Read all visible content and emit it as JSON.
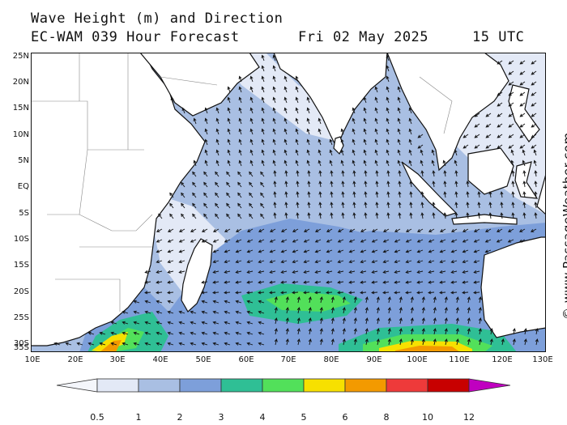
{
  "header": {
    "line1": "Wave Height (m) and Direction",
    "model": "EC-WAM 039 Hour Forecast",
    "date": "Fri 02 May 2025",
    "time": "15 UTC"
  },
  "credit": "© www.PassageWeather.com",
  "lat_labels": [
    "25N",
    "20N",
    "15N",
    "10N",
    "5N",
    "EQ",
    "5S",
    "10S",
    "15S",
    "20S",
    "25S",
    "30S",
    "35S"
  ],
  "lon_labels": [
    "10E",
    "20E",
    "30E",
    "40E",
    "50E",
    "60E",
    "70E",
    "80E",
    "90E",
    "100E",
    "110E",
    "120E",
    "130E"
  ],
  "colorbar": {
    "ticks": [
      "0.5",
      "1",
      "2",
      "3",
      "4",
      "5",
      "6",
      "8",
      "10",
      "12"
    ],
    "colors": [
      "#f4f6fb",
      "#e3e9f6",
      "#a9bfe3",
      "#7d9fda",
      "#2fbf95",
      "#52e05a",
      "#f7e000",
      "#f39a00",
      "#ee3a3a",
      "#c80000",
      "#c000c0"
    ]
  },
  "arrow_field": {
    "north_indian": "flowing north-east (SW monsoon onset)",
    "south_indian": "flowing west (SE trades)",
    "southern_ocean": "flowing east"
  }
}
